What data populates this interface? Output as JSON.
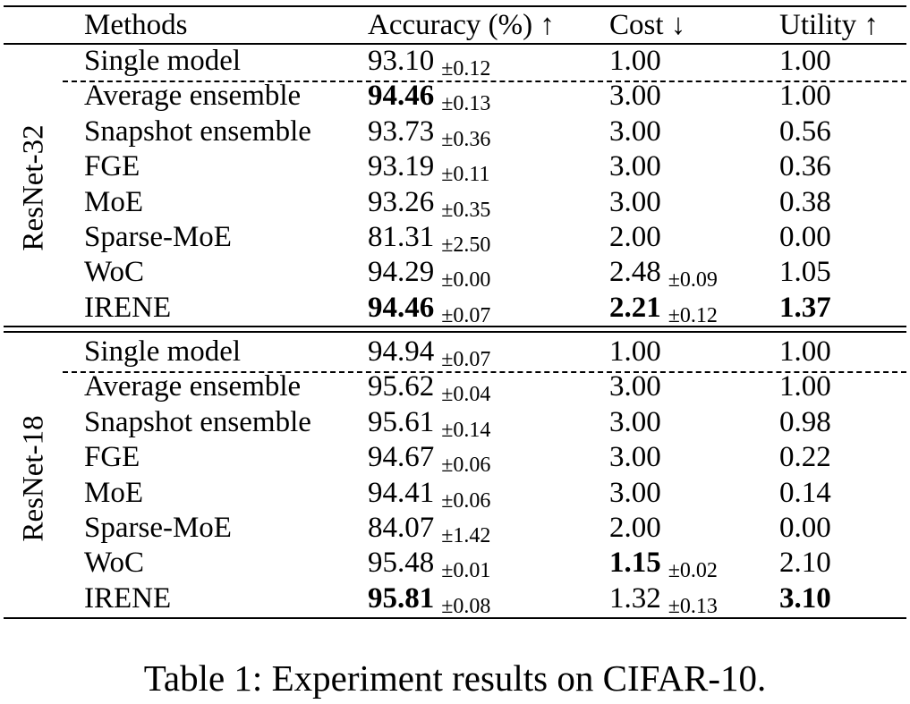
{
  "table": {
    "headers": {
      "method": "Methods",
      "accuracy": "Accuracy (%) ↑",
      "cost": "Cost ↓",
      "utility": "Utility ↑"
    },
    "groups": [
      {
        "label": "ResNet-32",
        "rows": [
          {
            "method": "Single model",
            "acc": "93.10",
            "acc_std": "±0.12",
            "acc_bold": false,
            "cost": "1.00",
            "cost_std": "",
            "cost_bold": false,
            "utility": "1.00",
            "utility_bold": false
          },
          {
            "method": "Average ensemble",
            "acc": "94.46",
            "acc_std": "±0.13",
            "acc_bold": true,
            "cost": "3.00",
            "cost_std": "",
            "cost_bold": false,
            "utility": "1.00",
            "utility_bold": false
          },
          {
            "method": "Snapshot ensemble",
            "acc": "93.73",
            "acc_std": "±0.36",
            "acc_bold": false,
            "cost": "3.00",
            "cost_std": "",
            "cost_bold": false,
            "utility": "0.56",
            "utility_bold": false
          },
          {
            "method": "FGE",
            "acc": "93.19",
            "acc_std": "±0.11",
            "acc_bold": false,
            "cost": "3.00",
            "cost_std": "",
            "cost_bold": false,
            "utility": "0.36",
            "utility_bold": false
          },
          {
            "method": "MoE",
            "acc": "93.26",
            "acc_std": "±0.35",
            "acc_bold": false,
            "cost": "3.00",
            "cost_std": "",
            "cost_bold": false,
            "utility": "0.38",
            "utility_bold": false
          },
          {
            "method": "Sparse-MoE",
            "acc": "81.31",
            "acc_std": "±2.50",
            "acc_bold": false,
            "cost": "2.00",
            "cost_std": "",
            "cost_bold": false,
            "utility": "0.00",
            "utility_bold": false
          },
          {
            "method": "WoC",
            "acc": "94.29",
            "acc_std": "±0.00",
            "acc_bold": false,
            "cost": "2.48",
            "cost_std": "±0.09",
            "cost_bold": false,
            "utility": "1.05",
            "utility_bold": false
          },
          {
            "method": "IRENE",
            "acc": "94.46",
            "acc_std": "±0.07",
            "acc_bold": true,
            "cost": "2.21",
            "cost_std": "±0.12",
            "cost_bold": true,
            "utility": "1.37",
            "utility_bold": true
          }
        ]
      },
      {
        "label": "ResNet-18",
        "rows": [
          {
            "method": "Single model",
            "acc": "94.94",
            "acc_std": "±0.07",
            "acc_bold": false,
            "cost": "1.00",
            "cost_std": "",
            "cost_bold": false,
            "utility": "1.00",
            "utility_bold": false
          },
          {
            "method": "Average ensemble",
            "acc": "95.62",
            "acc_std": "±0.04",
            "acc_bold": false,
            "cost": "3.00",
            "cost_std": "",
            "cost_bold": false,
            "utility": "1.00",
            "utility_bold": false
          },
          {
            "method": "Snapshot ensemble",
            "acc": "95.61",
            "acc_std": "±0.14",
            "acc_bold": false,
            "cost": "3.00",
            "cost_std": "",
            "cost_bold": false,
            "utility": "0.98",
            "utility_bold": false
          },
          {
            "method": "FGE",
            "acc": "94.67",
            "acc_std": "±0.06",
            "acc_bold": false,
            "cost": "3.00",
            "cost_std": "",
            "cost_bold": false,
            "utility": "0.22",
            "utility_bold": false
          },
          {
            "method": "MoE",
            "acc": "94.41",
            "acc_std": "±0.06",
            "acc_bold": false,
            "cost": "3.00",
            "cost_std": "",
            "cost_bold": false,
            "utility": "0.14",
            "utility_bold": false
          },
          {
            "method": "Sparse-MoE",
            "acc": "84.07",
            "acc_std": "±1.42",
            "acc_bold": false,
            "cost": "2.00",
            "cost_std": "",
            "cost_bold": false,
            "utility": "0.00",
            "utility_bold": false
          },
          {
            "method": "WoC",
            "acc": "95.48",
            "acc_std": "±0.01",
            "acc_bold": false,
            "cost": "1.15",
            "cost_std": "±0.02",
            "cost_bold": true,
            "utility": "2.10",
            "utility_bold": false
          },
          {
            "method": "IRENE",
            "acc": "95.81",
            "acc_std": "±0.08",
            "acc_bold": true,
            "cost": "1.32",
            "cost_std": "±0.13",
            "cost_bold": false,
            "utility": "3.10",
            "utility_bold": true
          }
        ]
      }
    ],
    "caption": "Table 1: Experiment results on CIFAR-10."
  }
}
